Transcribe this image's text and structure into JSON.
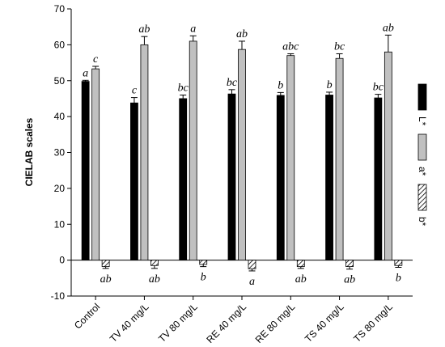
{
  "chart_data": {
    "type": "bar",
    "y_label": "CIELAB scales",
    "categories": [
      "Control",
      "TV 40 mg/L",
      "TV 80 mg/L",
      "RE 40 mg/L",
      "RE 80 mg/L",
      "TS 40 mg/L",
      "TS 80 mg/L"
    ],
    "series": [
      {
        "name": "L*",
        "color": "#000000",
        "hatch": false,
        "values": [
          49.8,
          43.8,
          45.0,
          46.3,
          45.9,
          46.0,
          45.2
        ],
        "errors": [
          0.3,
          1.5,
          1.0,
          1.2,
          0.8,
          0.8,
          1.0
        ],
        "labels": [
          "a",
          "c",
          "bc",
          "bc",
          "b",
          "b",
          "bc"
        ]
      },
      {
        "name": "a*",
        "color": "#c0c0c0",
        "hatch": false,
        "values": [
          53.3,
          60.0,
          61.0,
          58.7,
          57.0,
          56.2,
          58.0
        ],
        "errors": [
          0.7,
          2.3,
          1.5,
          2.3,
          0.5,
          1.3,
          4.7
        ],
        "labels": [
          "c",
          "ab",
          "a",
          "ab",
          "abc",
          "bc",
          "ab"
        ]
      },
      {
        "name": "b*",
        "color": "#000000",
        "hatch": true,
        "values": [
          -1.8,
          -1.5,
          -1.2,
          -2.4,
          -1.8,
          -1.8,
          -1.5
        ],
        "errors": [
          0.5,
          0.8,
          0.6,
          0.6,
          0.5,
          0.7,
          0.5
        ],
        "labels": [
          "ab",
          "ab",
          "b",
          "a",
          "ab",
          "ab",
          "b"
        ]
      }
    ],
    "ylim": [
      -10,
      70
    ],
    "yticks": [
      -10,
      0,
      10,
      20,
      30,
      40,
      50,
      60,
      70
    ],
    "grid": false,
    "legend": "right"
  }
}
